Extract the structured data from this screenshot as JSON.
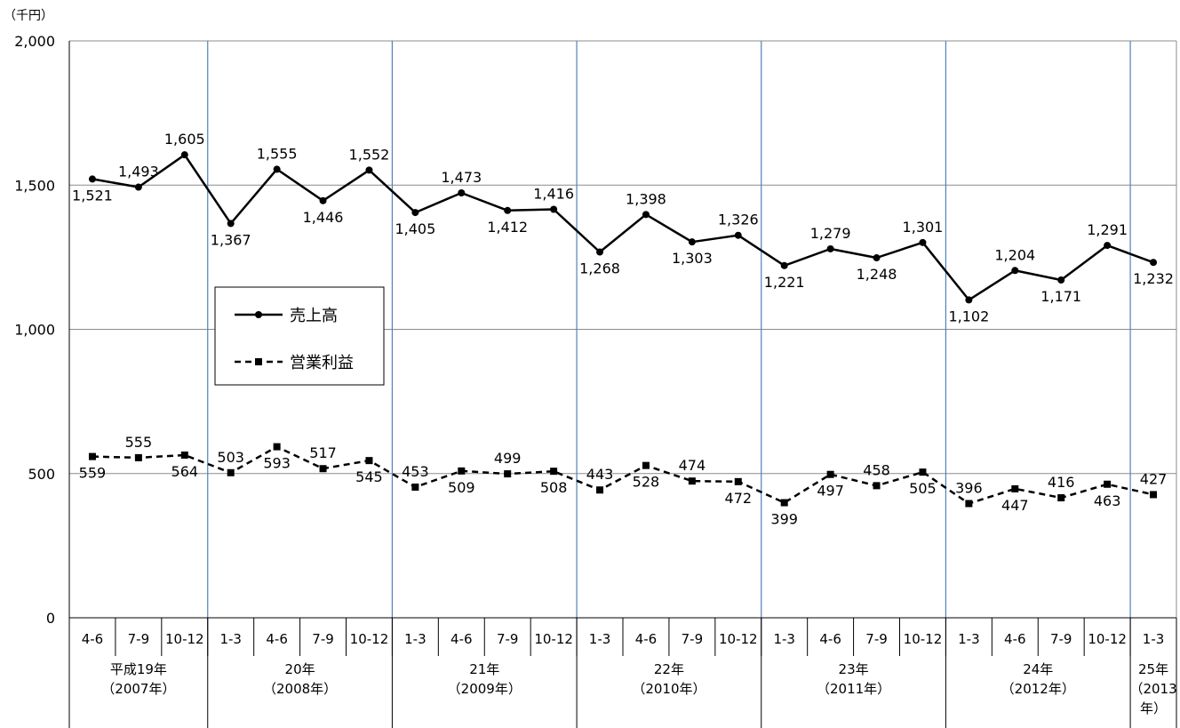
{
  "chart_data": {
    "type": "line",
    "unit_label": "（千円）",
    "ylim": [
      0,
      2000
    ],
    "yticks": [
      0,
      500,
      1000,
      1500,
      2000
    ],
    "ytick_labels": [
      "0",
      "500",
      "1,000",
      "1,500",
      "2,000"
    ],
    "grid": true,
    "quarters": [
      "4-6",
      "7-9",
      "10-12",
      "1-3",
      "4-6",
      "7-9",
      "10-12",
      "1-3",
      "4-6",
      "7-9",
      "10-12",
      "1-3",
      "4-6",
      "7-9",
      "10-12",
      "1-3",
      "4-6",
      "7-9",
      "10-12",
      "1-3",
      "4-6",
      "7-9",
      "10-12",
      "1-3"
    ],
    "years": [
      {
        "lines": [
          "平成19年",
          "（2007年）"
        ],
        "count": 3
      },
      {
        "lines": [
          "20年",
          "（2008年）"
        ],
        "count": 4
      },
      {
        "lines": [
          "21年",
          "（2009年）"
        ],
        "count": 4
      },
      {
        "lines": [
          "22年",
          "（2010年）"
        ],
        "count": 4
      },
      {
        "lines": [
          "23年",
          "（2011年）"
        ],
        "count": 4
      },
      {
        "lines": [
          "24年",
          "（2012年）"
        ],
        "count": 4
      },
      {
        "lines": [
          "25年",
          "（2013",
          "年）"
        ],
        "count": 1
      }
    ],
    "series": [
      {
        "name": "売上高",
        "style": "solid",
        "marker": "circle",
        "values": [
          1521,
          1493,
          1605,
          1367,
          1555,
          1446,
          1552,
          1405,
          1473,
          1412,
          1416,
          1268,
          1398,
          1303,
          1326,
          1221,
          1279,
          1248,
          1301,
          1102,
          1204,
          1171,
          1291,
          1232
        ],
        "labels": [
          "1,521",
          "1,493",
          "1,605",
          "1,367",
          "1,555",
          "1,446",
          "1,552",
          "1,405",
          "1,473",
          "1,412",
          "1,416",
          "1,268",
          "1,398",
          "1,303",
          "1,326",
          "1,221",
          "1,279",
          "1,248",
          "1,301",
          "1,102",
          "1,204",
          "1,171",
          "1,291",
          "1,232"
        ],
        "label_pos": [
          "below",
          "above",
          "above",
          "below",
          "above",
          "below",
          "above",
          "below",
          "above",
          "below",
          "above",
          "below",
          "above",
          "below",
          "above",
          "below",
          "above",
          "below",
          "above",
          "below",
          "above",
          "below",
          "above",
          "below"
        ]
      },
      {
        "name": "営業利益",
        "style": "dashed",
        "marker": "square",
        "values": [
          559,
          555,
          564,
          503,
          593,
          517,
          545,
          453,
          509,
          499,
          508,
          443,
          528,
          474,
          472,
          399,
          497,
          458,
          505,
          396,
          447,
          416,
          463,
          427
        ],
        "labels": [
          "559",
          "555",
          "564",
          "503",
          "593",
          "517",
          "545",
          "453",
          "509",
          "499",
          "508",
          "443",
          "528",
          "474",
          "472",
          "399",
          "497",
          "458",
          "505",
          "396",
          "447",
          "416",
          "463",
          "427"
        ],
        "label_pos": [
          "below",
          "above",
          "below",
          "above",
          "below",
          "above",
          "below",
          "above",
          "below",
          "above",
          "below",
          "above",
          "below",
          "above",
          "below",
          "below",
          "below",
          "above",
          "below",
          "above",
          "below",
          "above",
          "below",
          "above"
        ]
      }
    ],
    "legend": {
      "placement": "center-left",
      "entries": [
        "売上高",
        "営業利益"
      ]
    }
  }
}
